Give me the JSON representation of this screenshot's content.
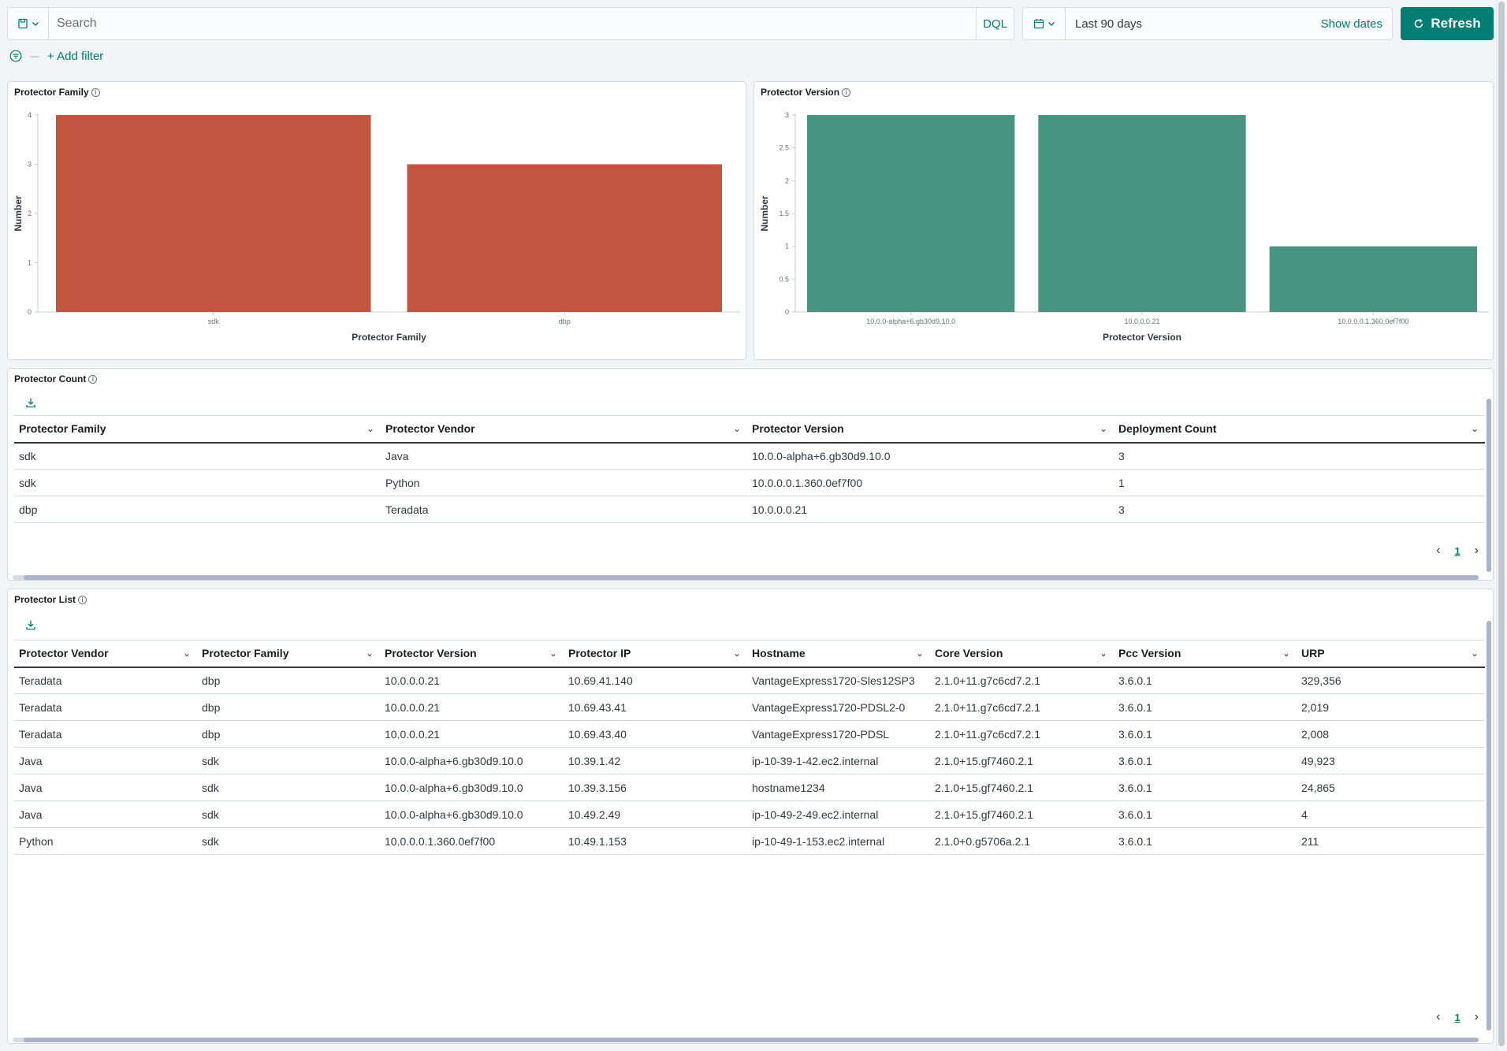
{
  "querybar": {
    "search_placeholder": "Search",
    "dql_label": "DQL",
    "date_range": "Last 90 days",
    "show_dates_label": "Show dates",
    "refresh_label": "Refresh"
  },
  "filters": {
    "add_filter_label": "+ Add filter"
  },
  "colors": {
    "accent": "#017d73",
    "family_bar": "#c15540",
    "version_bar": "#479580"
  },
  "panels": {
    "family_chart_title": "Protector Family",
    "version_chart_title": "Protector Version",
    "count_table_title": "Protector Count",
    "list_table_title": "Protector List"
  },
  "chart_data": [
    {
      "type": "bar",
      "title": "Protector Family",
      "xlabel": "Protector Family",
      "ylabel": "Number",
      "categories": [
        "sdk",
        "dbp"
      ],
      "values": [
        4,
        3
      ],
      "ylim": [
        0,
        4
      ],
      "yticks": [
        "0",
        "1",
        "2",
        "3",
        "4"
      ],
      "grid": false
    },
    {
      "type": "bar",
      "title": "Protector Version",
      "xlabel": "Protector Version",
      "ylabel": "Number",
      "categories": [
        "10.0.0-alpha+6.gb30d9.10.0",
        "10.0.0.0.21",
        "10.0.0.0.1.360.0ef7f00"
      ],
      "values": [
        3,
        3,
        1
      ],
      "ylim": [
        0,
        3
      ],
      "yticks": [
        "0",
        "0.5",
        "1",
        "1.5",
        "2",
        "2.5",
        "3"
      ],
      "grid": false
    }
  ],
  "count_table": {
    "columns": [
      "Protector Family",
      "Protector Vendor",
      "Protector Version",
      "Deployment Count"
    ],
    "rows": [
      [
        "sdk",
        "Java",
        "10.0.0-alpha+6.gb30d9.10.0",
        "3"
      ],
      [
        "sdk",
        "Python",
        "10.0.0.0.1.360.0ef7f00",
        "1"
      ],
      [
        "dbp",
        "Teradata",
        "10.0.0.0.21",
        "3"
      ]
    ],
    "page": "1"
  },
  "list_table": {
    "columns": [
      "Protector Vendor",
      "Protector Family",
      "Protector Version",
      "Protector IP",
      "Hostname",
      "Core Version",
      "Pcc Version",
      "URP"
    ],
    "rows": [
      [
        "Teradata",
        "dbp",
        "10.0.0.0.21",
        "10.69.41.140",
        "VantageExpress1720-Sles12SP3",
        "2.1.0+11.g7c6cd7.2.1",
        "3.6.0.1",
        "329,356"
      ],
      [
        "Teradata",
        "dbp",
        "10.0.0.0.21",
        "10.69.43.41",
        "VantageExpress1720-PDSL2-0",
        "2.1.0+11.g7c6cd7.2.1",
        "3.6.0.1",
        "2,019"
      ],
      [
        "Teradata",
        "dbp",
        "10.0.0.0.21",
        "10.69.43.40",
        "VantageExpress1720-PDSL",
        "2.1.0+11.g7c6cd7.2.1",
        "3.6.0.1",
        "2,008"
      ],
      [
        "Java",
        "sdk",
        "10.0.0-alpha+6.gb30d9.10.0",
        "10.39.1.42",
        "ip-10-39-1-42.ec2.internal",
        "2.1.0+15.gf7460.2.1",
        "3.6.0.1",
        "49,923"
      ],
      [
        "Java",
        "sdk",
        "10.0.0-alpha+6.gb30d9.10.0",
        "10.39.3.156",
        "hostname1234",
        "2.1.0+15.gf7460.2.1",
        "3.6.0.1",
        "24,865"
      ],
      [
        "Java",
        "sdk",
        "10.0.0-alpha+6.gb30d9.10.0",
        "10.49.2.49",
        "ip-10-49-2-49.ec2.internal",
        "2.1.0+15.gf7460.2.1",
        "3.6.0.1",
        "4"
      ],
      [
        "Python",
        "sdk",
        "10.0.0.0.1.360.0ef7f00",
        "10.49.1.153",
        "ip-10-49-1-153.ec2.internal",
        "2.1.0+0.g5706a.2.1",
        "3.6.0.1",
        "211"
      ]
    ],
    "page": "1"
  }
}
